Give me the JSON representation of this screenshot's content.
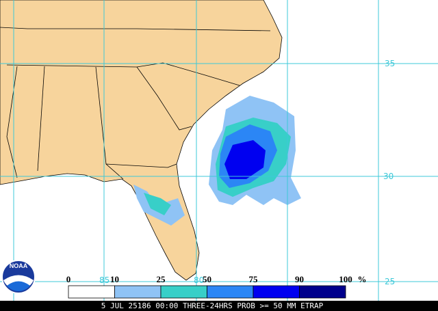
{
  "grid_labels": {
    "lat": [
      "35",
      "30",
      "25"
    ],
    "lon": [
      "85",
      "80"
    ]
  },
  "logo": "NOAA",
  "legend": {
    "labels": [
      "0",
      "10",
      "25",
      "50",
      "75",
      "90",
      "100"
    ],
    "unit": "%",
    "colors": [
      "#ffffff",
      "#8fc3f5",
      "#38cfc8",
      "#2b86f5",
      "#0000f0",
      "#00008c"
    ]
  },
  "footer": "5 JUL 25186 00:00 THREE-24HRS PROB >= 50 MM ETRAP"
}
